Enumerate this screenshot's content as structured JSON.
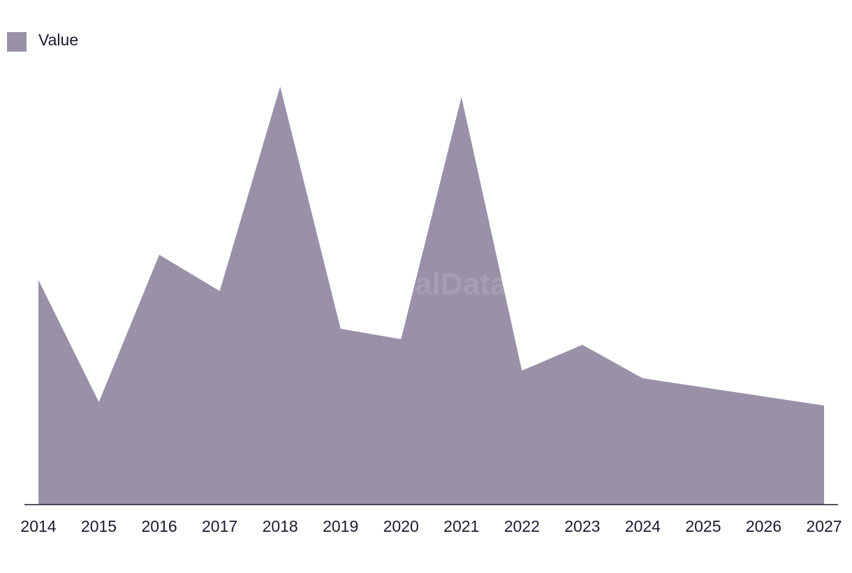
{
  "chart_data": {
    "type": "area",
    "legend": "top-left",
    "watermark": "GlobalData",
    "categories": [
      "2014",
      "2015",
      "2016",
      "2017",
      "2018",
      "2019",
      "2020",
      "2021",
      "2022",
      "2023",
      "2024",
      "2025",
      "2026",
      "2027"
    ],
    "series": [
      {
        "name": "Value",
        "color": "#9a91a9",
        "values": [
          322,
          147,
          358,
          306,
          599,
          252,
          237,
          584,
          192,
          229,
          181,
          168,
          155,
          142
        ]
      }
    ],
    "ylim": [
      0,
      600
    ]
  }
}
